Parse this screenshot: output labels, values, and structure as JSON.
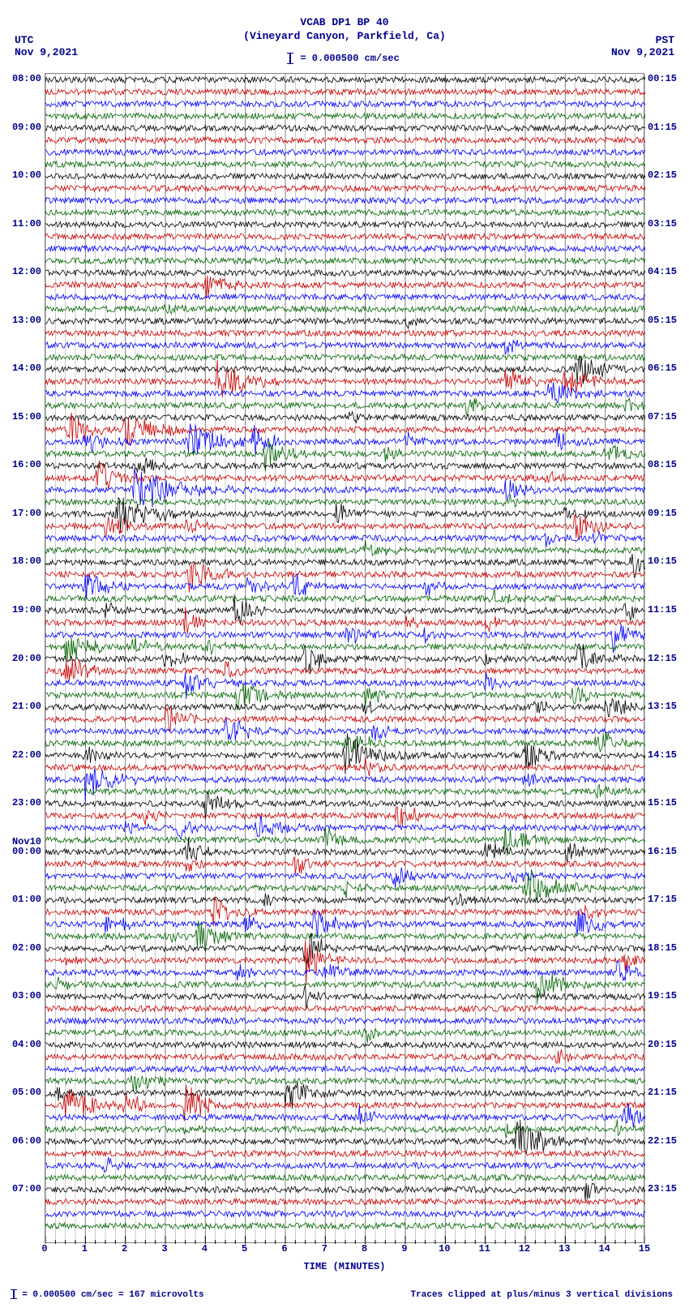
{
  "header": {
    "title1": "VCAB DP1 BP 40",
    "title2": "(Vineyard Canyon, Parkfield, Ca)",
    "scale_text": "= 0.000500 cm/sec"
  },
  "tz": {
    "left_tz": "UTC",
    "left_date": "Nov 9,2021",
    "right_tz": "PST",
    "right_date": "Nov 9,2021"
  },
  "footer": {
    "left": "= 0.000500 cm/sec =    167 microvolts",
    "right": "Traces clipped at plus/minus 3 vertical divisions"
  },
  "chart": {
    "type": "seismogram",
    "background_color": "#ffffff",
    "grid_color": "#808080",
    "text_color": "#00008b",
    "xlim_min": 0,
    "xlim_max": 15,
    "xtick_step_major": 1,
    "xtick_step_minor": 0.25,
    "xlabel": "TIME (MINUTES)",
    "n_traces": 96,
    "trace_line_width": 0.8,
    "font_family": "Courier New",
    "font_size_labels": 12,
    "font_size_title": 13,
    "trace_color_cycle": [
      "#000000",
      "#cc0000",
      "#0000ff",
      "#006600"
    ],
    "noise_amplitude_base": 0.25,
    "event_max_amplitude": 2.2
  },
  "left_time_labels": [
    {
      "row": 0,
      "text": "08:00"
    },
    {
      "row": 4,
      "text": "09:00"
    },
    {
      "row": 8,
      "text": "10:00"
    },
    {
      "row": 12,
      "text": "11:00"
    },
    {
      "row": 16,
      "text": "12:00"
    },
    {
      "row": 20,
      "text": "13:00"
    },
    {
      "row": 24,
      "text": "14:00"
    },
    {
      "row": 28,
      "text": "15:00"
    },
    {
      "row": 32,
      "text": "16:00"
    },
    {
      "row": 36,
      "text": "17:00"
    },
    {
      "row": 40,
      "text": "18:00"
    },
    {
      "row": 44,
      "text": "19:00"
    },
    {
      "row": 48,
      "text": "20:00"
    },
    {
      "row": 52,
      "text": "21:00"
    },
    {
      "row": 56,
      "text": "22:00"
    },
    {
      "row": 60,
      "text": "23:00"
    },
    {
      "row": 63.2,
      "text": "Nov10"
    },
    {
      "row": 64,
      "text": "00:00"
    },
    {
      "row": 68,
      "text": "01:00"
    },
    {
      "row": 72,
      "text": "02:00"
    },
    {
      "row": 76,
      "text": "03:00"
    },
    {
      "row": 80,
      "text": "04:00"
    },
    {
      "row": 84,
      "text": "05:00"
    },
    {
      "row": 88,
      "text": "06:00"
    },
    {
      "row": 92,
      "text": "07:00"
    }
  ],
  "right_time_labels": [
    {
      "row": 0,
      "text": "00:15"
    },
    {
      "row": 4,
      "text": "01:15"
    },
    {
      "row": 8,
      "text": "02:15"
    },
    {
      "row": 12,
      "text": "03:15"
    },
    {
      "row": 16,
      "text": "04:15"
    },
    {
      "row": 20,
      "text": "05:15"
    },
    {
      "row": 24,
      "text": "06:15"
    },
    {
      "row": 28,
      "text": "07:15"
    },
    {
      "row": 32,
      "text": "08:15"
    },
    {
      "row": 36,
      "text": "09:15"
    },
    {
      "row": 40,
      "text": "10:15"
    },
    {
      "row": 44,
      "text": "11:15"
    },
    {
      "row": 48,
      "text": "12:15"
    },
    {
      "row": 52,
      "text": "13:15"
    },
    {
      "row": 56,
      "text": "14:15"
    },
    {
      "row": 60,
      "text": "15:15"
    },
    {
      "row": 64,
      "text": "16:15"
    },
    {
      "row": 68,
      "text": "17:15"
    },
    {
      "row": 72,
      "text": "18:15"
    },
    {
      "row": 76,
      "text": "19:15"
    },
    {
      "row": 80,
      "text": "20:15"
    },
    {
      "row": 84,
      "text": "21:15"
    },
    {
      "row": 88,
      "text": "22:15"
    },
    {
      "row": 92,
      "text": "23:15"
    }
  ],
  "xticks": [
    0,
    1,
    2,
    3,
    4,
    5,
    6,
    7,
    8,
    9,
    10,
    11,
    12,
    13,
    14,
    15
  ],
  "events": [
    {
      "row": 17,
      "x": 4.0,
      "amp": 1.2,
      "w": 1.0
    },
    {
      "row": 19,
      "x": 3.0,
      "amp": 0.7,
      "w": 0.6
    },
    {
      "row": 20,
      "x": 9.0,
      "amp": 0.7,
      "w": 0.6
    },
    {
      "row": 22,
      "x": 11.5,
      "amp": 0.7,
      "w": 0.6
    },
    {
      "row": 24,
      "x": 13.3,
      "amp": 1.6,
      "w": 1.2
    },
    {
      "row": 25,
      "x": 4.3,
      "amp": 1.8,
      "w": 1.4
    },
    {
      "row": 25,
      "x": 11.5,
      "amp": 1.2,
      "w": 1.0
    },
    {
      "row": 25,
      "x": 13.0,
      "amp": 1.4,
      "w": 1.0
    },
    {
      "row": 26,
      "x": 12.6,
      "amp": 1.2,
      "w": 1.0
    },
    {
      "row": 27,
      "x": 10.5,
      "amp": 0.8,
      "w": 0.7
    },
    {
      "row": 27,
      "x": 14.5,
      "amp": 0.7,
      "w": 0.6
    },
    {
      "row": 28,
      "x": 7.5,
      "amp": 0.7,
      "w": 0.6
    },
    {
      "row": 29,
      "x": 2.0,
      "amp": 1.6,
      "w": 1.5
    },
    {
      "row": 29,
      "x": 0.6,
      "amp": 1.4,
      "w": 0.8
    },
    {
      "row": 30,
      "x": 3.6,
      "amp": 2.0,
      "w": 1.2
    },
    {
      "row": 30,
      "x": 5.2,
      "amp": 1.6,
      "w": 0.8
    },
    {
      "row": 30,
      "x": 1.0,
      "amp": 1.6,
      "w": 0.8
    },
    {
      "row": 30,
      "x": 12.8,
      "amp": 1.0,
      "w": 0.8
    },
    {
      "row": 30,
      "x": 9.0,
      "amp": 0.8,
      "w": 0.6
    },
    {
      "row": 31,
      "x": 5.5,
      "amp": 1.4,
      "w": 1.0
    },
    {
      "row": 31,
      "x": 14.0,
      "amp": 1.2,
      "w": 0.8
    },
    {
      "row": 31,
      "x": 8.5,
      "amp": 0.8,
      "w": 0.6
    },
    {
      "row": 32,
      "x": 2.3,
      "amp": 1.0,
      "w": 0.8
    },
    {
      "row": 33,
      "x": 1.3,
      "amp": 1.6,
      "w": 1.0
    },
    {
      "row": 33,
      "x": 12.5,
      "amp": 0.7,
      "w": 0.5
    },
    {
      "row": 34,
      "x": 2.2,
      "amp": 2.2,
      "w": 1.8
    },
    {
      "row": 34,
      "x": 11.5,
      "amp": 1.2,
      "w": 0.8
    },
    {
      "row": 35,
      "x": 11.5,
      "amp": 0.8,
      "w": 0.6
    },
    {
      "row": 36,
      "x": 7.3,
      "amp": 1.2,
      "w": 0.6
    },
    {
      "row": 36,
      "x": 1.8,
      "amp": 2.0,
      "w": 1.4
    },
    {
      "row": 36,
      "x": 13.0,
      "amp": 0.8,
      "w": 0.6
    },
    {
      "row": 37,
      "x": 1.5,
      "amp": 1.2,
      "w": 1.0
    },
    {
      "row": 37,
      "x": 13.2,
      "amp": 1.4,
      "w": 1.0
    },
    {
      "row": 37,
      "x": 3.5,
      "amp": 0.8,
      "w": 0.6
    },
    {
      "row": 38,
      "x": 13.7,
      "amp": 1.0,
      "w": 0.8
    },
    {
      "row": 38,
      "x": 12.5,
      "amp": 0.8,
      "w": 0.6
    },
    {
      "row": 39,
      "x": 8.0,
      "amp": 1.0,
      "w": 0.8
    },
    {
      "row": 40,
      "x": 14.7,
      "amp": 1.4,
      "w": 0.5
    },
    {
      "row": 41,
      "x": 3.6,
      "amp": 1.6,
      "w": 1.0
    },
    {
      "row": 42,
      "x": 1.0,
      "amp": 1.2,
      "w": 1.0
    },
    {
      "row": 42,
      "x": 5.0,
      "amp": 1.0,
      "w": 0.8
    },
    {
      "row": 42,
      "x": 6.2,
      "amp": 1.2,
      "w": 0.8
    },
    {
      "row": 42,
      "x": 9.5,
      "amp": 0.8,
      "w": 0.6
    },
    {
      "row": 43,
      "x": 11.2,
      "amp": 0.8,
      "w": 0.6
    },
    {
      "row": 44,
      "x": 4.7,
      "amp": 1.4,
      "w": 0.8
    },
    {
      "row": 44,
      "x": 14.5,
      "amp": 1.0,
      "w": 0.6
    },
    {
      "row": 44,
      "x": 1.5,
      "amp": 0.8,
      "w": 0.6
    },
    {
      "row": 45,
      "x": 3.5,
      "amp": 1.2,
      "w": 0.8
    },
    {
      "row": 45,
      "x": 9.0,
      "amp": 0.8,
      "w": 0.6
    },
    {
      "row": 45,
      "x": 11.0,
      "amp": 0.8,
      "w": 0.6
    },
    {
      "row": 46,
      "x": 7.5,
      "amp": 1.0,
      "w": 0.8
    },
    {
      "row": 46,
      "x": 14.2,
      "amp": 1.4,
      "w": 0.8
    },
    {
      "row": 46,
      "x": 9.5,
      "amp": 0.8,
      "w": 0.6
    },
    {
      "row": 47,
      "x": 0.5,
      "amp": 1.6,
      "w": 1.0
    },
    {
      "row": 47,
      "x": 2.2,
      "amp": 1.0,
      "w": 0.8
    },
    {
      "row": 47,
      "x": 4.0,
      "amp": 0.8,
      "w": 0.6
    },
    {
      "row": 48,
      "x": 3.0,
      "amp": 1.2,
      "w": 0.8
    },
    {
      "row": 48,
      "x": 6.5,
      "amp": 1.4,
      "w": 0.8
    },
    {
      "row": 48,
      "x": 11.0,
      "amp": 0.8,
      "w": 0.6
    },
    {
      "row": 48,
      "x": 13.3,
      "amp": 1.6,
      "w": 1.0
    },
    {
      "row": 49,
      "x": 0.5,
      "amp": 1.6,
      "w": 1.0
    },
    {
      "row": 49,
      "x": 4.5,
      "amp": 0.8,
      "w": 0.6
    },
    {
      "row": 50,
      "x": 3.5,
      "amp": 1.4,
      "w": 1.0
    },
    {
      "row": 50,
      "x": 11.0,
      "amp": 0.8,
      "w": 0.6
    },
    {
      "row": 51,
      "x": 4.8,
      "amp": 1.6,
      "w": 1.0
    },
    {
      "row": 51,
      "x": 8.0,
      "amp": 1.0,
      "w": 0.8
    },
    {
      "row": 51,
      "x": 13.2,
      "amp": 1.0,
      "w": 0.8
    },
    {
      "row": 52,
      "x": 7.8,
      "amp": 1.0,
      "w": 0.6
    },
    {
      "row": 52,
      "x": 14.0,
      "amp": 1.2,
      "w": 0.8
    },
    {
      "row": 52,
      "x": 12.2,
      "amp": 0.8,
      "w": 0.6
    },
    {
      "row": 53,
      "x": 3.0,
      "amp": 1.4,
      "w": 0.8
    },
    {
      "row": 54,
      "x": 4.5,
      "amp": 1.4,
      "w": 1.0
    },
    {
      "row": 54,
      "x": 8.2,
      "amp": 0.8,
      "w": 0.6
    },
    {
      "row": 55,
      "x": 7.5,
      "amp": 1.2,
      "w": 1.0
    },
    {
      "row": 55,
      "x": 13.8,
      "amp": 1.4,
      "w": 0.8
    },
    {
      "row": 56,
      "x": 7.5,
      "amp": 2.0,
      "w": 1.2
    },
    {
      "row": 56,
      "x": 12.0,
      "amp": 1.4,
      "w": 1.0
    },
    {
      "row": 56,
      "x": 1.0,
      "amp": 1.0,
      "w": 0.8
    },
    {
      "row": 57,
      "x": 8.0,
      "amp": 0.8,
      "w": 0.6
    },
    {
      "row": 58,
      "x": 1.0,
      "amp": 1.8,
      "w": 1.2
    },
    {
      "row": 58,
      "x": 12.0,
      "amp": 0.8,
      "w": 0.6
    },
    {
      "row": 59,
      "x": 13.8,
      "amp": 0.8,
      "w": 0.6
    },
    {
      "row": 60,
      "x": 4.0,
      "amp": 1.4,
      "w": 0.8
    },
    {
      "row": 61,
      "x": 8.8,
      "amp": 1.2,
      "w": 0.8
    },
    {
      "row": 61,
      "x": 2.5,
      "amp": 0.8,
      "w": 0.6
    },
    {
      "row": 62,
      "x": 2.0,
      "amp": 1.0,
      "w": 0.6
    },
    {
      "row": 62,
      "x": 5.3,
      "amp": 1.4,
      "w": 1.0
    },
    {
      "row": 62,
      "x": 3.3,
      "amp": 1.0,
      "w": 0.6
    },
    {
      "row": 63,
      "x": 7.0,
      "amp": 1.0,
      "w": 0.8
    },
    {
      "row": 63,
      "x": 11.5,
      "amp": 1.4,
      "w": 1.0
    },
    {
      "row": 64,
      "x": 3.5,
      "amp": 1.2,
      "w": 0.8
    },
    {
      "row": 64,
      "x": 11.0,
      "amp": 1.2,
      "w": 0.8
    },
    {
      "row": 64,
      "x": 13.0,
      "amp": 1.2,
      "w": 0.8
    },
    {
      "row": 65,
      "x": 6.2,
      "amp": 1.2,
      "w": 0.8
    },
    {
      "row": 65,
      "x": 3.5,
      "amp": 0.8,
      "w": 0.6
    },
    {
      "row": 66,
      "x": 8.7,
      "amp": 1.0,
      "w": 0.6
    },
    {
      "row": 66,
      "x": 11.7,
      "amp": 0.8,
      "w": 0.6
    },
    {
      "row": 67,
      "x": 12.0,
      "amp": 1.8,
      "w": 1.2
    },
    {
      "row": 67,
      "x": 7.5,
      "amp": 0.8,
      "w": 0.6
    },
    {
      "row": 68,
      "x": 5.5,
      "amp": 0.8,
      "w": 0.4
    },
    {
      "row": 68,
      "x": 10.2,
      "amp": 0.8,
      "w": 0.6
    },
    {
      "row": 69,
      "x": 4.2,
      "amp": 1.4,
      "w": 1.0
    },
    {
      "row": 69,
      "x": 13.5,
      "amp": 0.8,
      "w": 0.6
    },
    {
      "row": 70,
      "x": 6.7,
      "amp": 1.4,
      "w": 1.0
    },
    {
      "row": 70,
      "x": 1.5,
      "amp": 1.0,
      "w": 0.8
    },
    {
      "row": 70,
      "x": 5.0,
      "amp": 1.0,
      "w": 0.8
    },
    {
      "row": 70,
      "x": 13.3,
      "amp": 1.4,
      "w": 0.8
    },
    {
      "row": 71,
      "x": 3.8,
      "amp": 1.4,
      "w": 1.0
    },
    {
      "row": 71,
      "x": 3.0,
      "amp": 0.8,
      "w": 0.5
    },
    {
      "row": 72,
      "x": 6.5,
      "amp": 2.2,
      "w": 0.7
    },
    {
      "row": 73,
      "x": 6.5,
      "amp": 2.2,
      "w": 0.7
    },
    {
      "row": 73,
      "x": 14.5,
      "amp": 1.2,
      "w": 0.6
    },
    {
      "row": 73,
      "x": 0.5,
      "amp": 0.8,
      "w": 0.6
    },
    {
      "row": 74,
      "x": 4.8,
      "amp": 0.8,
      "w": 0.5
    },
    {
      "row": 74,
      "x": 7.0,
      "amp": 1.2,
      "w": 0.8
    },
    {
      "row": 74,
      "x": 14.3,
      "amp": 1.2,
      "w": 0.8
    },
    {
      "row": 75,
      "x": 0.3,
      "amp": 1.0,
      "w": 0.5
    },
    {
      "row": 75,
      "x": 12.3,
      "amp": 1.8,
      "w": 1.0
    },
    {
      "row": 76,
      "x": 6.5,
      "amp": 1.0,
      "w": 0.6
    },
    {
      "row": 79,
      "x": 8.0,
      "amp": 0.8,
      "w": 0.5
    },
    {
      "row": 81,
      "x": 12.8,
      "amp": 0.7,
      "w": 0.5
    },
    {
      "row": 83,
      "x": 2.2,
      "amp": 1.0,
      "w": 0.8
    },
    {
      "row": 84,
      "x": 6.0,
      "amp": 1.6,
      "w": 1.0
    },
    {
      "row": 84,
      "x": 0.3,
      "amp": 1.0,
      "w": 0.5
    },
    {
      "row": 85,
      "x": 0.5,
      "amp": 2.0,
      "w": 1.0
    },
    {
      "row": 85,
      "x": 3.5,
      "amp": 2.0,
      "w": 0.8
    },
    {
      "row": 85,
      "x": 2.0,
      "amp": 1.0,
      "w": 0.8
    },
    {
      "row": 86,
      "x": 7.8,
      "amp": 1.0,
      "w": 0.8
    },
    {
      "row": 86,
      "x": 14.5,
      "amp": 1.4,
      "w": 0.6
    },
    {
      "row": 87,
      "x": 3.5,
      "amp": 0.8,
      "w": 0.5
    },
    {
      "row": 87,
      "x": 11.5,
      "amp": 0.7,
      "w": 0.5
    },
    {
      "row": 87,
      "x": 14.3,
      "amp": 0.7,
      "w": 0.4
    },
    {
      "row": 88,
      "x": 11.8,
      "amp": 2.0,
      "w": 1.2
    },
    {
      "row": 90,
      "x": 1.5,
      "amp": 0.7,
      "w": 0.5
    },
    {
      "row": 92,
      "x": 13.5,
      "amp": 1.0,
      "w": 0.6
    }
  ]
}
